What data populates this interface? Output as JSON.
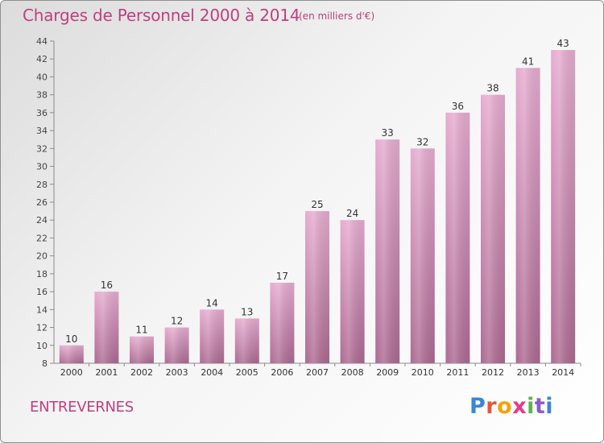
{
  "header": {
    "title": "Charges de Personnel 2000 à 2014",
    "subtitle": "(en milliers d'€)"
  },
  "footer": {
    "town": "ENTREVERNES",
    "logo": [
      "P",
      "r",
      "o",
      "x",
      "i",
      "t",
      "i"
    ]
  },
  "colors": {
    "title": "#c0407f",
    "bar_top": "#e4a8cc",
    "bar_bottom": "#b06c94"
  },
  "chart_data": {
    "type": "bar",
    "title": "Charges de Personnel 2000 à 2014",
    "subtitle": "(en milliers d'€)",
    "xlabel": "",
    "ylabel": "",
    "categories": [
      "2000",
      "2001",
      "2002",
      "2003",
      "2004",
      "2005",
      "2006",
      "2007",
      "2008",
      "2009",
      "2010",
      "2011",
      "2012",
      "2013",
      "2014"
    ],
    "values": [
      10,
      16,
      11,
      12,
      14,
      13,
      17,
      25,
      24,
      33,
      32,
      36,
      38,
      41,
      43
    ],
    "ylim": [
      8,
      44
    ],
    "yticks": [
      8,
      10,
      12,
      14,
      16,
      18,
      20,
      22,
      24,
      26,
      28,
      30,
      32,
      34,
      36,
      38,
      40,
      42,
      44
    ],
    "grid": false,
    "legend": "none"
  }
}
